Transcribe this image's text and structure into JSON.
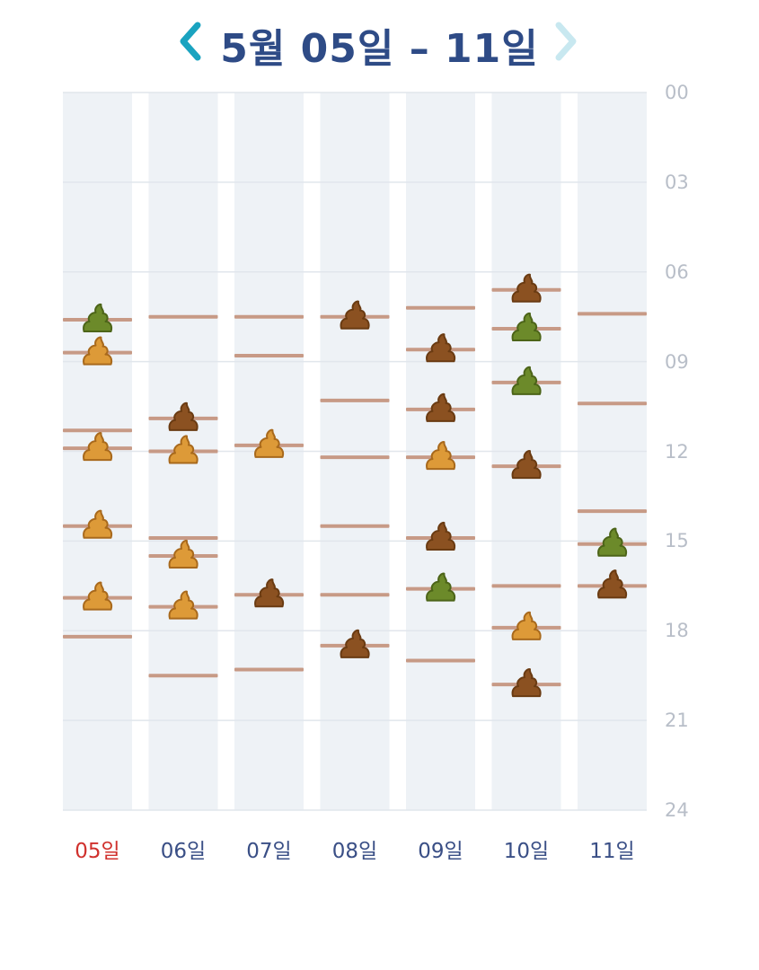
{
  "header": {
    "title": "5월 05일 – 11일",
    "prev_icon": "chevron-left-icon",
    "next_icon": "chevron-right-icon",
    "prev_color": "#1aa3c0",
    "next_color": "#c8e8f0"
  },
  "colors": {
    "column_bg": "#eef2f6",
    "gridline": "#e1e6ec",
    "marker_line": "#c79a86",
    "poop_light": "#dd9a38",
    "poop_dark": "#8b5121",
    "poop_green": "#6c8a2a",
    "today_label": "#d0312d",
    "day_label": "#3a4f86",
    "hour_label": "#b8bec8"
  },
  "hour_labels": [
    "00",
    "03",
    "06",
    "09",
    "12",
    "15",
    "18",
    "21",
    "24"
  ],
  "chart_data": {
    "type": "scatter",
    "y_unit": "hour",
    "ylim": [
      0,
      24
    ],
    "y_ticks": [
      0,
      3,
      6,
      9,
      12,
      15,
      18,
      21,
      24
    ],
    "days": [
      {
        "label": "05일",
        "today": true,
        "lines": [
          7.6,
          8.7,
          11.3,
          11.9,
          14.5,
          16.9,
          18.2
        ],
        "icons": [
          {
            "hour": 7.6,
            "kind": "green"
          },
          {
            "hour": 8.7,
            "kind": "light"
          },
          {
            "hour": 11.9,
            "kind": "light"
          },
          {
            "hour": 14.5,
            "kind": "light"
          },
          {
            "hour": 16.9,
            "kind": "light"
          }
        ]
      },
      {
        "label": "06일",
        "today": false,
        "lines": [
          7.5,
          10.9,
          12.0,
          14.9,
          15.5,
          17.2,
          19.5
        ],
        "icons": [
          {
            "hour": 10.9,
            "kind": "dark"
          },
          {
            "hour": 12.0,
            "kind": "light"
          },
          {
            "hour": 15.5,
            "kind": "light"
          },
          {
            "hour": 17.2,
            "kind": "light"
          }
        ]
      },
      {
        "label": "07일",
        "today": false,
        "lines": [
          7.5,
          8.8,
          11.8,
          16.8,
          19.3
        ],
        "icons": [
          {
            "hour": 11.8,
            "kind": "light"
          },
          {
            "hour": 16.8,
            "kind": "dark"
          }
        ]
      },
      {
        "label": "08일",
        "today": false,
        "lines": [
          7.5,
          10.3,
          12.2,
          14.5,
          16.8,
          18.5
        ],
        "icons": [
          {
            "hour": 7.5,
            "kind": "dark"
          },
          {
            "hour": 18.5,
            "kind": "dark"
          }
        ]
      },
      {
        "label": "09일",
        "today": false,
        "lines": [
          7.2,
          8.6,
          10.6,
          12.2,
          14.9,
          16.6,
          19.0
        ],
        "icons": [
          {
            "hour": 8.6,
            "kind": "dark"
          },
          {
            "hour": 10.6,
            "kind": "dark"
          },
          {
            "hour": 12.2,
            "kind": "light"
          },
          {
            "hour": 14.9,
            "kind": "dark"
          },
          {
            "hour": 16.6,
            "kind": "green"
          }
        ]
      },
      {
        "label": "10일",
        "today": false,
        "lines": [
          6.6,
          7.9,
          9.7,
          12.5,
          16.5,
          17.9,
          19.8
        ],
        "icons": [
          {
            "hour": 6.6,
            "kind": "dark"
          },
          {
            "hour": 7.9,
            "kind": "green"
          },
          {
            "hour": 9.7,
            "kind": "green"
          },
          {
            "hour": 12.5,
            "kind": "dark"
          },
          {
            "hour": 17.9,
            "kind": "light"
          },
          {
            "hour": 19.8,
            "kind": "dark"
          }
        ]
      },
      {
        "label": "11일",
        "today": false,
        "lines": [
          7.4,
          10.4,
          14.0,
          15.1,
          16.5
        ],
        "icons": [
          {
            "hour": 15.1,
            "kind": "green"
          },
          {
            "hour": 16.5,
            "kind": "dark"
          }
        ]
      }
    ]
  }
}
